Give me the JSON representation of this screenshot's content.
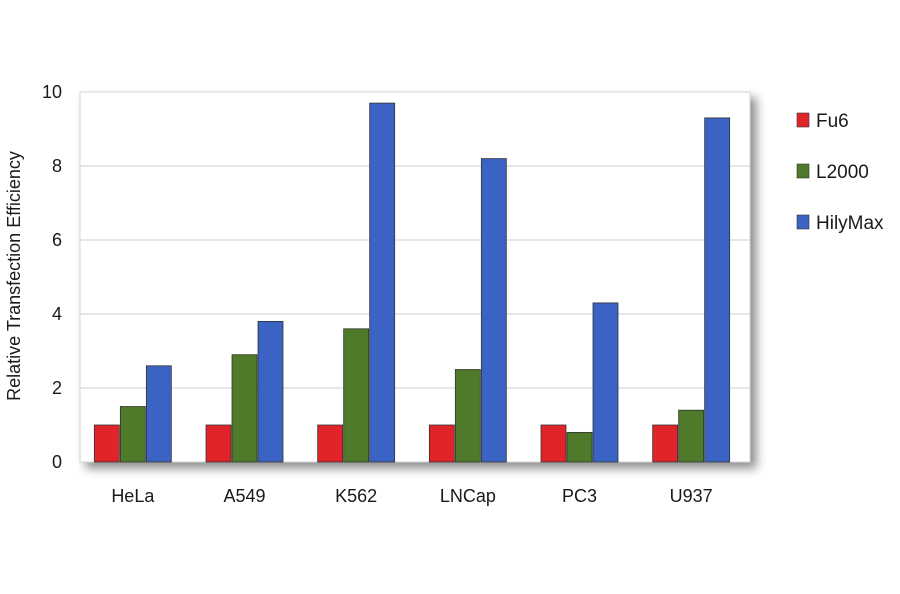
{
  "chart_data": {
    "type": "bar",
    "title": "",
    "xlabel": "",
    "ylabel": "Relative Transfection Efficiency",
    "ylim": [
      0,
      10
    ],
    "yticks": [
      0,
      2,
      4,
      6,
      8,
      10
    ],
    "grid": true,
    "legend_position": "right",
    "categories": [
      "HeLa",
      "A549",
      "K562",
      "LNCap",
      "PC3",
      "U937"
    ],
    "series": [
      {
        "name": "Fu6",
        "color": "#e0242a",
        "values": [
          1.0,
          1.0,
          1.0,
          1.0,
          1.0,
          1.0
        ]
      },
      {
        "name": "L2000",
        "color": "#4f7a2a",
        "values": [
          1.5,
          2.9,
          3.6,
          2.5,
          0.8,
          1.4
        ]
      },
      {
        "name": "HilyMax",
        "color": "#3a63c4",
        "values": [
          2.6,
          3.8,
          9.7,
          8.2,
          4.3,
          9.3
        ]
      }
    ]
  }
}
